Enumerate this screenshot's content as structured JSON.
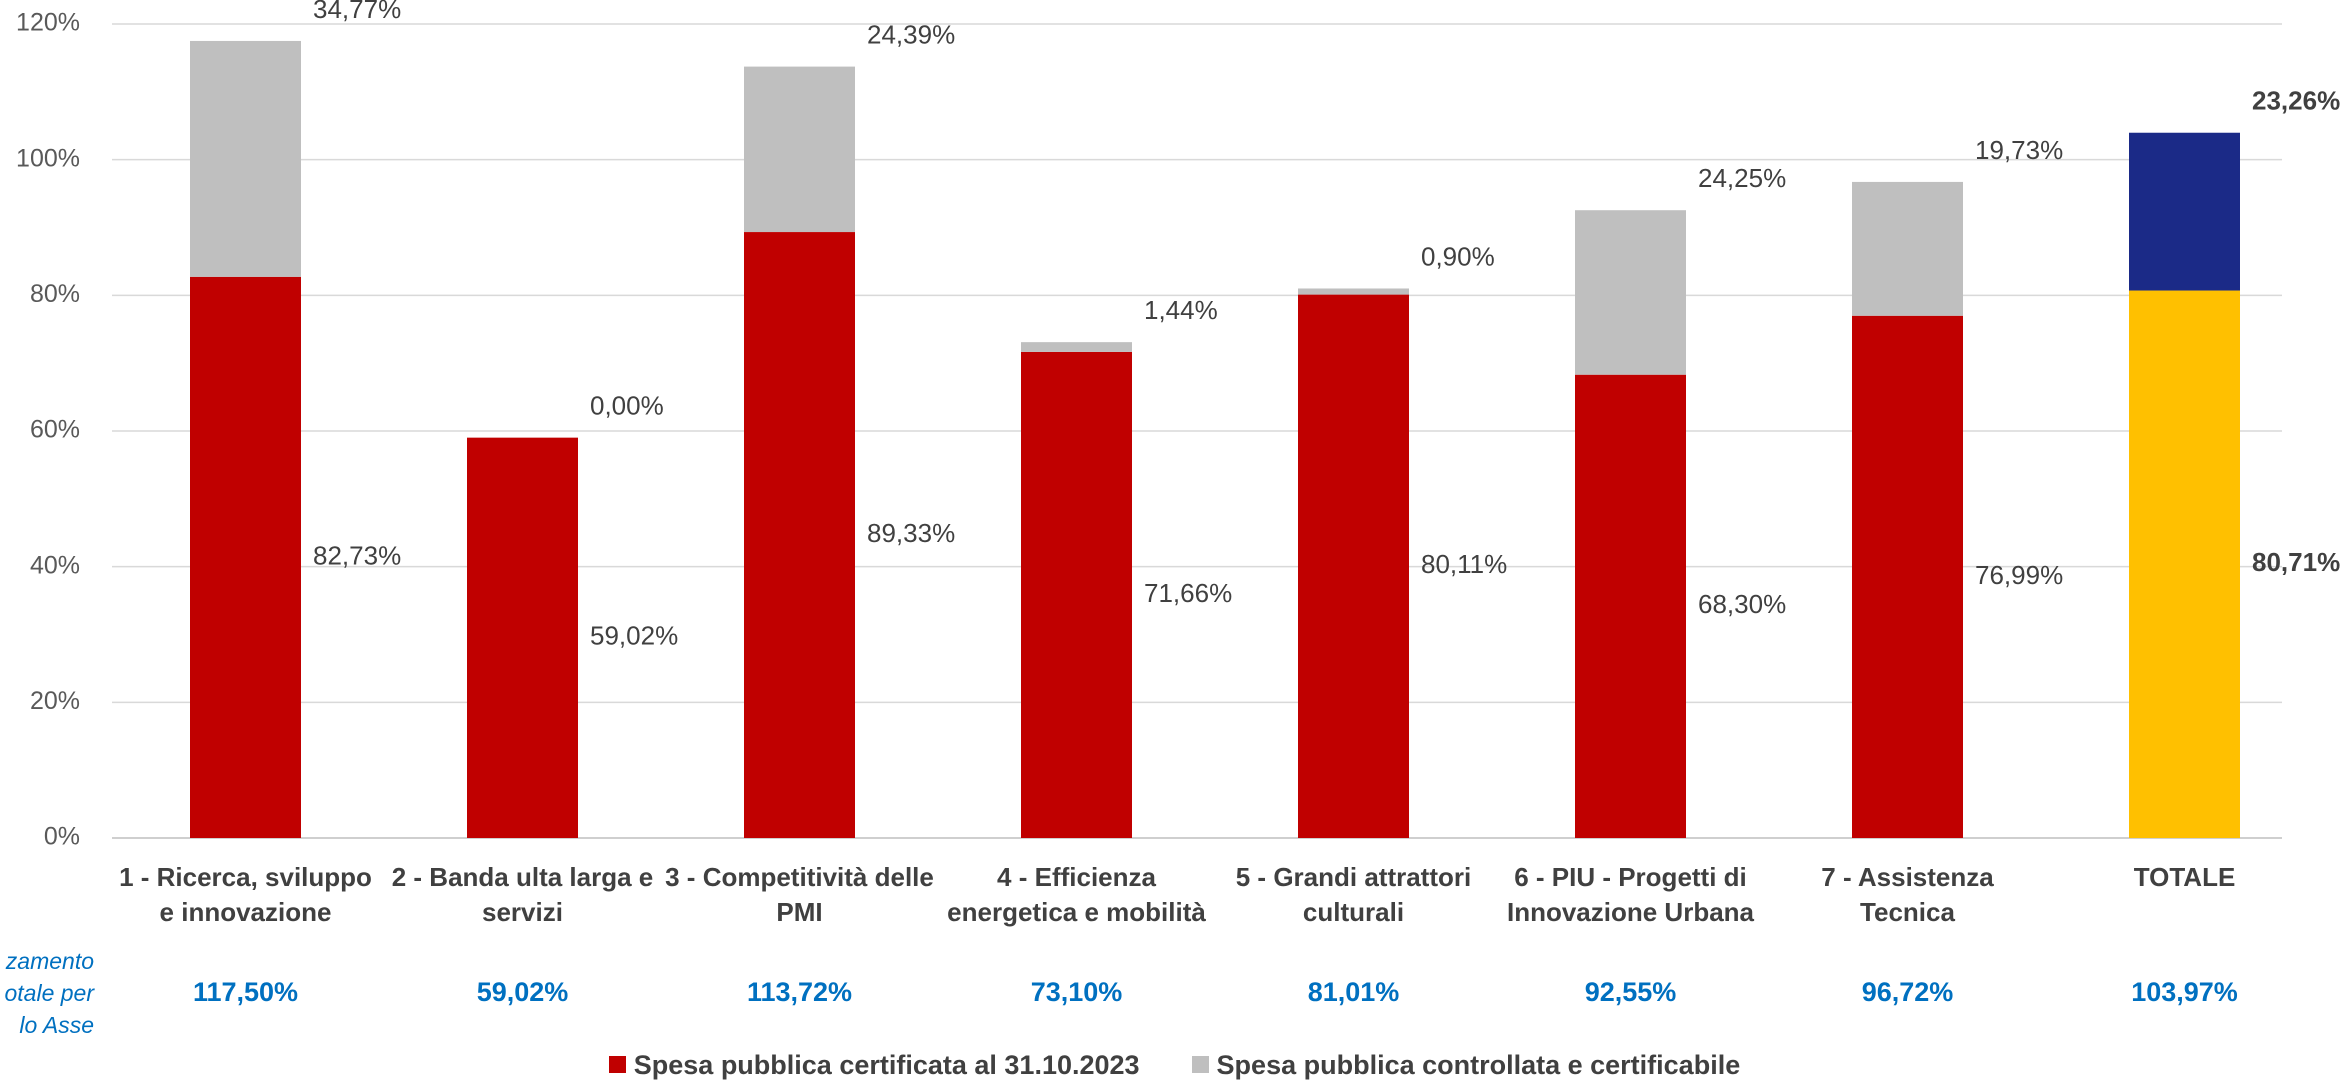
{
  "chart_data": {
    "type": "stacked_bar",
    "categories": [
      "1 - Ricerca, sviluppo e innovazione",
      "2 - Banda ulta larga e servizi",
      "3 - Competitività delle PMI",
      "4 - Efficienza energetica e mobilità",
      "5 - Grandi attrattori culturali",
      "6 - PIU - Progetti di Innovazione Urbana",
      "7 - Assistenza Tecnica",
      "TOTALE"
    ],
    "series": [
      {
        "name": "Spesa pubblica certificata al 31.10.2023",
        "color": "#c00000",
        "colors": [
          "#c00000",
          "#c00000",
          "#c00000",
          "#c00000",
          "#c00000",
          "#c00000",
          "#c00000",
          "#ffc000"
        ],
        "values": [
          82.73,
          59.02,
          89.33,
          71.66,
          80.11,
          68.3,
          76.99,
          80.71
        ],
        "value_labels": [
          "82,73%",
          "59,02%",
          "89,33%",
          "71,66%",
          "80,11%",
          "68,30%",
          "76,99%",
          "80,71%"
        ]
      },
      {
        "name": "Spesa pubblica controllata e certificabile",
        "color": "#bfbfbf",
        "colors": [
          "#bfbfbf",
          "#bfbfbf",
          "#bfbfbf",
          "#bfbfbf",
          "#bfbfbf",
          "#bfbfbf",
          "#bfbfbf",
          "#1b2a87"
        ],
        "values": [
          34.77,
          0.0,
          24.39,
          1.44,
          0.9,
          24.25,
          19.73,
          23.26
        ],
        "value_labels": [
          "34,77%",
          "0,00%",
          "24,39%",
          "1,44%",
          "0,90%",
          "24,25%",
          "19,73%",
          "23,26%"
        ]
      }
    ],
    "totals": {
      "values": [
        117.5,
        59.02,
        113.72,
        73.1,
        81.01,
        92.55,
        96.72,
        103.97
      ],
      "value_labels": [
        "117,50%",
        "59,02%",
        "113,72%",
        "73,10%",
        "81,01%",
        "92,55%",
        "96,72%",
        "103,97%"
      ],
      "caption_lines": [
        "zamento",
        "otale per",
        "lo Asse"
      ]
    },
    "ylim": [
      0,
      120
    ],
    "yticks": [
      {
        "value": 0,
        "label": "0%"
      },
      {
        "value": 20,
        "label": "20%"
      },
      {
        "value": 40,
        "label": "40%"
      },
      {
        "value": 60,
        "label": "60%"
      },
      {
        "value": 80,
        "label": "80%"
      },
      {
        "value": 100,
        "label": "100%"
      },
      {
        "value": 120,
        "label": "120%"
      }
    ],
    "grid": true,
    "legend": "bottom"
  }
}
